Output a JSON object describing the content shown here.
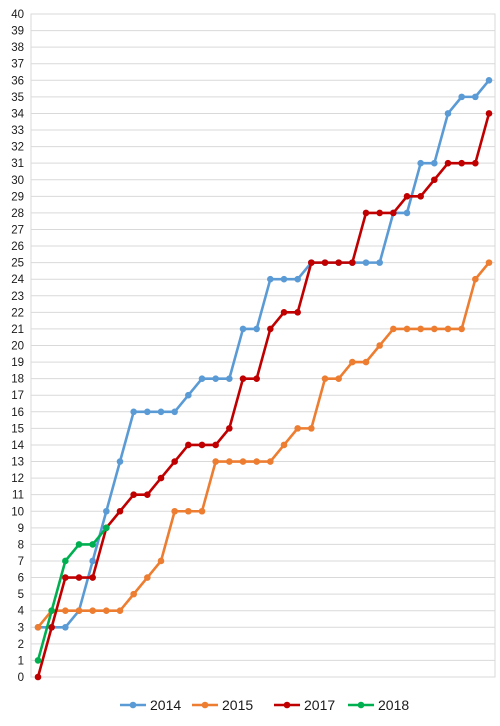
{
  "chart_data": {
    "type": "line",
    "title": "",
    "xlabel": "",
    "ylabel": "",
    "ylim": [
      0,
      40
    ],
    "yticks": [
      "0",
      "1",
      "2",
      "3",
      "4",
      "5",
      "6",
      "7",
      "8",
      "9",
      "10",
      "11",
      "12",
      "13",
      "14",
      "15",
      "16",
      "17",
      "18",
      "19",
      "20",
      "21",
      "22",
      "23",
      "24",
      "25",
      "26",
      "27",
      "28",
      "29",
      "30",
      "31",
      "32",
      "33",
      "34",
      "35",
      "36",
      "37",
      "38",
      "39",
      "40"
    ],
    "x_categories_count": 34,
    "grid": true,
    "legend_position": "bottom",
    "series": [
      {
        "name": "2014",
        "color": "#5b9bd5",
        "values": [
          3,
          3,
          3,
          4,
          7,
          10,
          13,
          16,
          16,
          16,
          16,
          17,
          18,
          18,
          18,
          21,
          21,
          24,
          24,
          24,
          25,
          25,
          25,
          25,
          25,
          25,
          28,
          28,
          31,
          31,
          34,
          35,
          35,
          36
        ]
      },
      {
        "name": "2015",
        "color": "#ed7d31",
        "values": [
          3,
          4,
          4,
          4,
          4,
          4,
          4,
          5,
          6,
          7,
          10,
          10,
          10,
          13,
          13,
          13,
          13,
          13,
          14,
          15,
          15,
          18,
          18,
          19,
          19,
          20,
          21,
          21,
          21,
          21,
          21,
          21,
          24,
          25
        ]
      },
      {
        "name": "2017",
        "color": "#c00000",
        "values": [
          0,
          3,
          6,
          6,
          6,
          9,
          10,
          11,
          11,
          12,
          13,
          14,
          14,
          14,
          15,
          18,
          18,
          21,
          22,
          22,
          25,
          25,
          25,
          25,
          28,
          28,
          28,
          29,
          29,
          30,
          31,
          31,
          31,
          34
        ]
      },
      {
        "name": "2018",
        "color": "#00b050",
        "values": [
          1,
          4,
          7,
          8,
          8,
          9
        ]
      }
    ]
  }
}
